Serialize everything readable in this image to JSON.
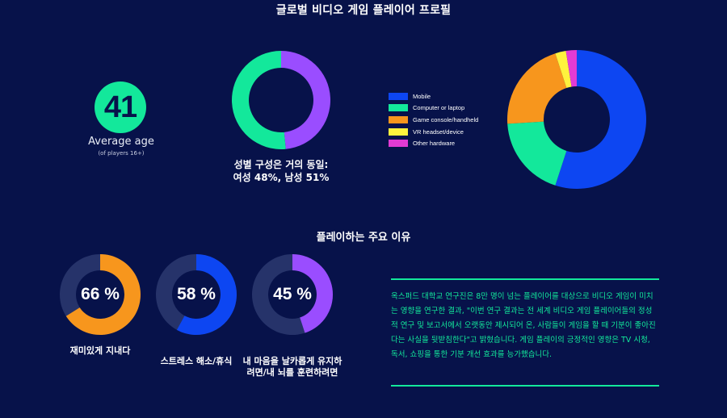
{
  "title": "글로벌 비디오 게임 플레이어 프로필",
  "colors": {
    "background": "#07124a",
    "accent_green": "#13e89b",
    "purple": "#9a4dff",
    "blue": "#0d46f2",
    "orange": "#f7961d",
    "yellow": "#fff23d",
    "magenta": "#e23bd4",
    "track": "#26336a"
  },
  "age": {
    "value": "41",
    "label": "Average age",
    "sub": "(of players 16+)"
  },
  "gender": {
    "line1": "성별 구성은 거의 동일:",
    "line2": "여성 48%, 남성 51%"
  },
  "reasons_title": "플레이하는 주요 이유",
  "reasons": [
    {
      "pct_label": "66 %",
      "label": "재미있게 지내다"
    },
    {
      "pct_label": "58 %",
      "label": "스트레스 해소/휴식"
    },
    {
      "pct_label": "45 %",
      "label": "내 마음을 날카롭게 유지하려면/내 뇌를 훈련하려면"
    }
  ],
  "quote": "옥스퍼드 대학교 연구진은 8만 명이 넘는 플레이어를 대상으로 비디오 게임이 미치는 영향을 연구한 결과, \"이번 연구 결과는 전 세계 비디오 게임 플레이어들의 정성적 연구 및 보고서에서 오랫동안 제시되어 온, 사람들이 게임을 할 때 기분이 좋아진다는 사실을 뒷받침한다\"고 밝혔습니다. 게임 플레이의 긍정적인 영향은 TV 시청, 독서, 쇼핑을 통한 기분 개선 효과를 능가했습니다.",
  "chart_data": [
    {
      "type": "pie",
      "categories": [
        "여성",
        "남성"
      ],
      "values": [
        48,
        51
      ],
      "colors": [
        "#9a4dff",
        "#13e89b"
      ]
    },
    {
      "type": "pie",
      "categories": [
        "Mobile",
        "Computer or laptop",
        "Game console/handheld",
        "VR headset/device",
        "Other hardware"
      ],
      "values": [
        55,
        19,
        21,
        2.5,
        2.5
      ],
      "colors": [
        "#0d46f2",
        "#13e89b",
        "#f7961d",
        "#fff23d",
        "#e23bd4"
      ]
    },
    {
      "type": "pie",
      "categories": [
        "재미있게 지내다",
        "스트레스 해소/휴식",
        "내 마음을 날카롭게 유지하려면/내 뇌를 훈련하려면"
      ],
      "values": [
        66,
        58,
        45
      ],
      "colors": [
        "#f7961d",
        "#0d46f2",
        "#9a4dff"
      ]
    }
  ]
}
